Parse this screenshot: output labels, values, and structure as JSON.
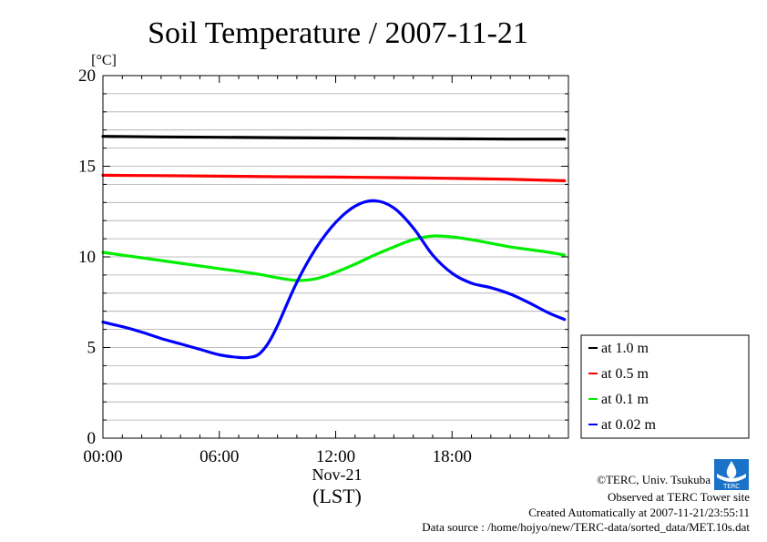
{
  "page": {
    "title": "Soil Temperature / 2007-11-21",
    "y_unit": "[°C]",
    "x_date_label": "Nov-21",
    "x_time_label": "(LST)"
  },
  "footer": {
    "copyright": "©TERC, Univ. Tsukuba",
    "observed": "Observed at TERC Tower site",
    "created": "Created Automatically at 2007-11-21/23:55:11",
    "source": "Data source : /home/hojyo/new/TERC-data/sorted_data/MET.10s.dat",
    "logo_text": "TERC"
  },
  "chart_data": {
    "type": "line",
    "title": "Soil Temperature / 2007-11-21",
    "ylabel": "[°C]",
    "xlabel": "(LST)",
    "xlim": [
      0,
      24
    ],
    "ylim": [
      0,
      20
    ],
    "x_ticks": [
      0,
      6,
      12,
      18
    ],
    "x_tick_labels": [
      "00:00",
      "06:00",
      "12:00",
      "18:00"
    ],
    "y_ticks": [
      0,
      5,
      10,
      15,
      20
    ],
    "y_tick_labels": [
      "0",
      "5",
      "10",
      "15",
      "20"
    ],
    "grid": true,
    "legend_position": "right",
    "series": [
      {
        "name": "at 1.0 m",
        "color": "#000000",
        "x": [
          0,
          3,
          6,
          9,
          12,
          15,
          18,
          21,
          23.8
        ],
        "values": [
          16.65,
          16.62,
          16.6,
          16.58,
          16.56,
          16.54,
          16.52,
          16.5,
          16.5
        ]
      },
      {
        "name": "at 0.5 m",
        "color": "#ff0000",
        "x": [
          0,
          3,
          6,
          9,
          12,
          15,
          18,
          21,
          23.8
        ],
        "values": [
          14.5,
          14.48,
          14.45,
          14.42,
          14.4,
          14.37,
          14.33,
          14.28,
          14.2
        ]
      },
      {
        "name": "at 0.1 m",
        "color": "#00ee00",
        "x": [
          0,
          2,
          4,
          6,
          8,
          9,
          10,
          11,
          12,
          13,
          14,
          15,
          16,
          17,
          18,
          19,
          20,
          21,
          22,
          23,
          23.8
        ],
        "values": [
          10.25,
          9.95,
          9.65,
          9.35,
          9.05,
          8.85,
          8.7,
          8.8,
          9.15,
          9.6,
          10.1,
          10.55,
          10.95,
          11.15,
          11.1,
          10.95,
          10.75,
          10.55,
          10.4,
          10.25,
          10.1
        ]
      },
      {
        "name": "at 0.02 m",
        "color": "#0000ff",
        "x": [
          0,
          1,
          2,
          3,
          4,
          5,
          6,
          7,
          7.5,
          8,
          8.5,
          9,
          10,
          11,
          12,
          13,
          14,
          15,
          16,
          17,
          18,
          19,
          20,
          21,
          22,
          23,
          23.8
        ],
        "values": [
          6.4,
          6.15,
          5.85,
          5.5,
          5.2,
          4.9,
          4.6,
          4.45,
          4.45,
          4.6,
          5.2,
          6.2,
          8.6,
          10.5,
          11.9,
          12.8,
          13.1,
          12.7,
          11.6,
          10.1,
          9.1,
          8.55,
          8.3,
          7.95,
          7.45,
          6.9,
          6.55
        ]
      }
    ]
  }
}
